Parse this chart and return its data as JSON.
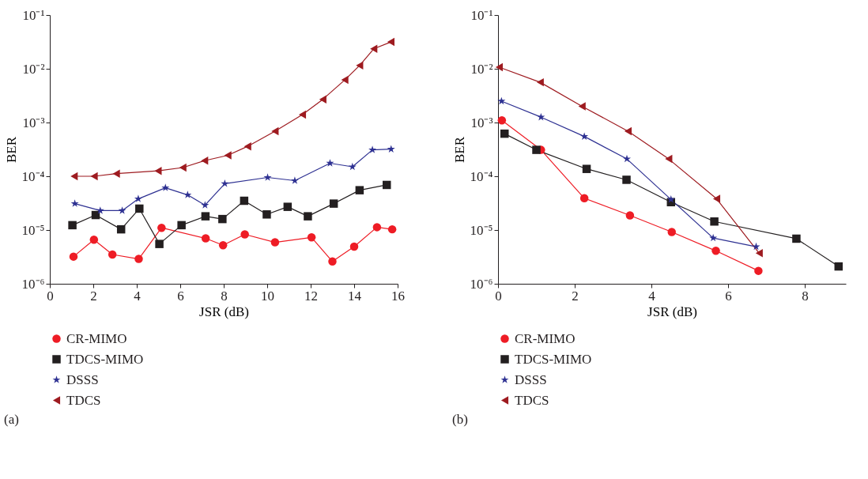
{
  "chart_data": [
    {
      "type": "line",
      "xlabel": "JSR (dB)",
      "ylabel": "BER",
      "log": "y",
      "legend": "bottom",
      "grid": false,
      "annotations": [
        "(a)"
      ],
      "xlim": [
        0,
        16
      ],
      "xticks": [
        0,
        2,
        4,
        6,
        8,
        10,
        12,
        14,
        16
      ],
      "ylim": [
        1e-06,
        0.1
      ],
      "yticks": [
        {
          "value": 1e-06,
          "label": "10⁻⁶"
        },
        {
          "value": 1e-05,
          "label": "10⁻⁵"
        },
        {
          "value": 0.0001,
          "label": "10⁻⁴"
        },
        {
          "value": 0.001,
          "label": "10⁻³"
        },
        {
          "value": 0.01,
          "label": "10⁻²"
        },
        {
          "value": 0.1,
          "label": "10⁻¹"
        }
      ],
      "series": [
        {
          "name": "CR-MIMO",
          "color": "#ee1c25",
          "marker": "circle",
          "x": [
            1.09,
            2.03,
            2.88,
            4.09,
            5.14,
            7.17,
            7.97,
            8.97,
            10.36,
            12.04,
            13.0,
            14.0,
            15.05,
            15.75
          ],
          "values": [
            3.2e-06,
            6.6e-06,
            3.5e-06,
            2.9e-06,
            1.1e-05,
            7e-06,
            5.2e-06,
            8.3e-06,
            5.9e-06,
            7.3e-06,
            2.6e-06,
            4.9e-06,
            1.13e-05,
            1.03e-05
          ]
        },
        {
          "name": "TDCS-MIMO",
          "color": "#231f20",
          "marker": "square",
          "x": [
            1.04,
            2.11,
            3.28,
            4.12,
            5.04,
            6.06,
            7.16,
            7.94,
            8.94,
            9.98,
            10.94,
            11.87,
            13.06,
            14.25,
            15.5
          ],
          "values": [
            1.23e-05,
            1.9e-05,
            1.03e-05,
            2.5e-05,
            5.5e-06,
            1.23e-05,
            1.8e-05,
            1.6e-05,
            3.5e-05,
            1.95e-05,
            2.7e-05,
            1.8e-05,
            3.1e-05,
            5.5e-05,
            6.9e-05
          ]
        },
        {
          "name": "DSSS",
          "color": "#2e3192",
          "marker": "star",
          "x": [
            1.15,
            2.32,
            3.33,
            4.07,
            5.32,
            6.34,
            7.14,
            8.05,
            10.02,
            11.27,
            12.89,
            13.92,
            14.84,
            15.7
          ],
          "values": [
            3.1e-05,
            2.3e-05,
            2.3e-05,
            3.8e-05,
            6.1e-05,
            4.5e-05,
            2.9e-05,
            7.3e-05,
            9.5e-05,
            8.3e-05,
            0.000175,
            0.00015,
            0.00031,
            0.00032
          ]
        },
        {
          "name": "TDCS",
          "color": "#9e1b20",
          "marker": "triangle",
          "x": [
            1.12,
            2.04,
            3.06,
            4.98,
            6.12,
            7.12,
            8.19,
            9.1,
            10.36,
            11.62,
            12.56,
            13.57,
            14.25,
            14.9,
            15.69
          ],
          "values": [
            0.0001,
            0.0001,
            0.000112,
            0.000126,
            0.000145,
            0.000195,
            0.000245,
            0.00036,
            0.00069,
            0.0014,
            0.0027,
            0.0062,
            0.0115,
            0.0235,
            0.0315
          ]
        }
      ]
    },
    {
      "type": "line",
      "xlabel": "JSR (dB)",
      "ylabel": "BER",
      "log": "y",
      "legend": "bottom",
      "grid": false,
      "annotations": [
        "(b)"
      ],
      "xlim": [
        0,
        9.07
      ],
      "xticks": [
        0,
        2,
        4,
        6,
        8
      ],
      "ylim": [
        1e-06,
        0.1
      ],
      "yticks": [
        {
          "value": 1e-06,
          "label": "10⁻⁶"
        },
        {
          "value": 1e-05,
          "label": "10⁻⁵"
        },
        {
          "value": 0.0001,
          "label": "10⁻⁴"
        },
        {
          "value": 0.001,
          "label": "10⁻³"
        },
        {
          "value": 0.01,
          "label": "10⁻²"
        },
        {
          "value": 0.1,
          "label": "10⁻¹"
        }
      ],
      "series": [
        {
          "name": "CR-MIMO",
          "color": "#ee1c25",
          "marker": "circle",
          "x": [
            0.1,
            1.12,
            2.25,
            3.44,
            4.53,
            5.68,
            6.79
          ],
          "values": [
            0.0011,
            0.00031,
            3.9e-05,
            1.87e-05,
            9.2e-06,
            4.1e-06,
            1.74e-06
          ]
        },
        {
          "name": "TDCS-MIMO",
          "color": "#231f20",
          "marker": "square",
          "x": [
            0.17,
            1.0,
            2.31,
            3.35,
            4.51,
            5.64,
            7.78,
            8.88
          ],
          "values": [
            0.00062,
            0.00031,
            0.000137,
            8.6e-05,
            3.3e-05,
            1.44e-05,
            6.9e-06,
            2.1e-06
          ]
        },
        {
          "name": "DSSS",
          "color": "#2e3192",
          "marker": "star",
          "x": [
            0.09,
            1.12,
            2.25,
            3.36,
            4.51,
            5.61,
            6.73
          ],
          "values": [
            0.0025,
            0.00126,
            0.00055,
            0.00021,
            3.7e-05,
            7.1e-06,
            4.9e-06
          ]
        },
        {
          "name": "TDCS",
          "color": "#9e1b20",
          "marker": "triangle",
          "x": [
            0.03,
            1.1,
            2.19,
            3.39,
            4.45,
            5.7,
            6.81
          ],
          "values": [
            0.0107,
            0.0056,
            0.002,
            0.00069,
            0.00021,
            3.8e-05,
            3.7e-06
          ]
        }
      ]
    }
  ]
}
